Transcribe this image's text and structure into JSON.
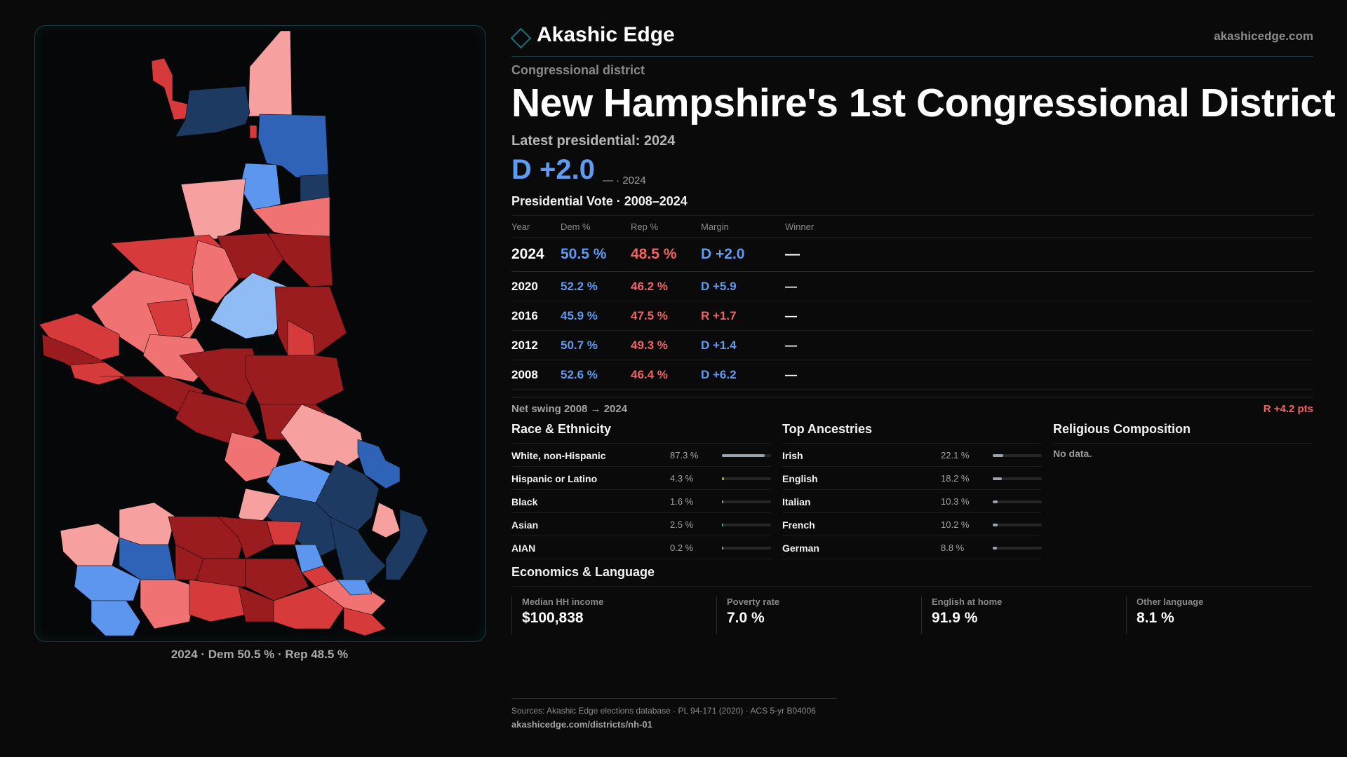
{
  "brand": {
    "name": "Akashic Edge",
    "url": "akashicedge.com"
  },
  "header": {
    "kicker": "Congressional district",
    "title": "New Hampshire's 1st Congressional District",
    "latest": "Latest presidential: 2024",
    "margin": "D +2.0",
    "margin_note": "— · 2024"
  },
  "vote_section": {
    "title": "Presidential Vote · 2008–2024",
    "columns": [
      "Year",
      "Dem %",
      "Rep %",
      "Margin",
      "Winner"
    ],
    "rows": [
      {
        "year": "2024",
        "dem": "50.5 %",
        "rep": "48.5 %",
        "margin": "D +2.0",
        "winner": "—"
      },
      {
        "year": "2020",
        "dem": "52.2 %",
        "rep": "46.2 %",
        "margin": "D +5.9",
        "winner": "—"
      },
      {
        "year": "2016",
        "dem": "45.9 %",
        "rep": "47.5 %",
        "margin": "R +1.7",
        "winner": "—"
      },
      {
        "year": "2012",
        "dem": "50.7 %",
        "rep": "49.3 %",
        "margin": "D +1.4",
        "winner": "—"
      },
      {
        "year": "2008",
        "dem": "52.6 %",
        "rep": "46.4 %",
        "margin": "D +6.2",
        "winner": "—"
      }
    ],
    "swing_label": "Net swing 2008 → 2024",
    "swing_value": "R +4.2 pts"
  },
  "race": {
    "title": "Race & Ethnicity",
    "rows": [
      {
        "label": "White, non-Hispanic",
        "value": "87.3 %",
        "share": 0.873,
        "color": "#9aa4b0"
      },
      {
        "label": "Hispanic or Latino",
        "value": "4.3 %",
        "share": 0.043,
        "color": "#e0a030"
      },
      {
        "label": "Black",
        "value": "1.6 %",
        "share": 0.016,
        "color": "#9aa4b0"
      },
      {
        "label": "Asian",
        "value": "2.5 %",
        "share": 0.025,
        "color": "#3cb47a"
      },
      {
        "label": "AIAN",
        "value": "0.2 %",
        "share": 0.002,
        "color": "#9aa4b0"
      }
    ]
  },
  "ancestry": {
    "title": "Top Ancestries",
    "rows": [
      {
        "label": "Irish",
        "value": "22.1 %",
        "share": 0.221
      },
      {
        "label": "English",
        "value": "18.2 %",
        "share": 0.182
      },
      {
        "label": "Italian",
        "value": "10.3 %",
        "share": 0.103
      },
      {
        "label": "French",
        "value": "10.2 %",
        "share": 0.102
      },
      {
        "label": "German",
        "value": "8.8 %",
        "share": 0.088
      }
    ]
  },
  "religion": {
    "title": "Religious Composition",
    "empty": "No data."
  },
  "economics": {
    "title": "Economics & Language",
    "cells": [
      {
        "label": "Median HH income",
        "value": "$100,838"
      },
      {
        "label": "Poverty rate",
        "value": "7.0 %"
      },
      {
        "label": "English at home",
        "value": "91.9 %"
      },
      {
        "label": "Other language",
        "value": "8.1 %"
      }
    ]
  },
  "map": {
    "caption": "2024 · Dem 50.5 % · Rep 48.5 %",
    "colors": {
      "dark_red": "#9a1c1f",
      "red": "#d63a3a",
      "light_red": "#f07272",
      "pink": "#f7a0a0",
      "dark_blue": "#1d3a63",
      "blue": "#2e63b8",
      "light_blue": "#5c96ee",
      "pale_blue": "#8fbcf4"
    }
  },
  "footer": {
    "source": "Sources: Akashic Edge elections database · PL 94-171 (2020) · ACS 5-yr B04006",
    "url": "akashicedge.com/districts/nh-01"
  }
}
